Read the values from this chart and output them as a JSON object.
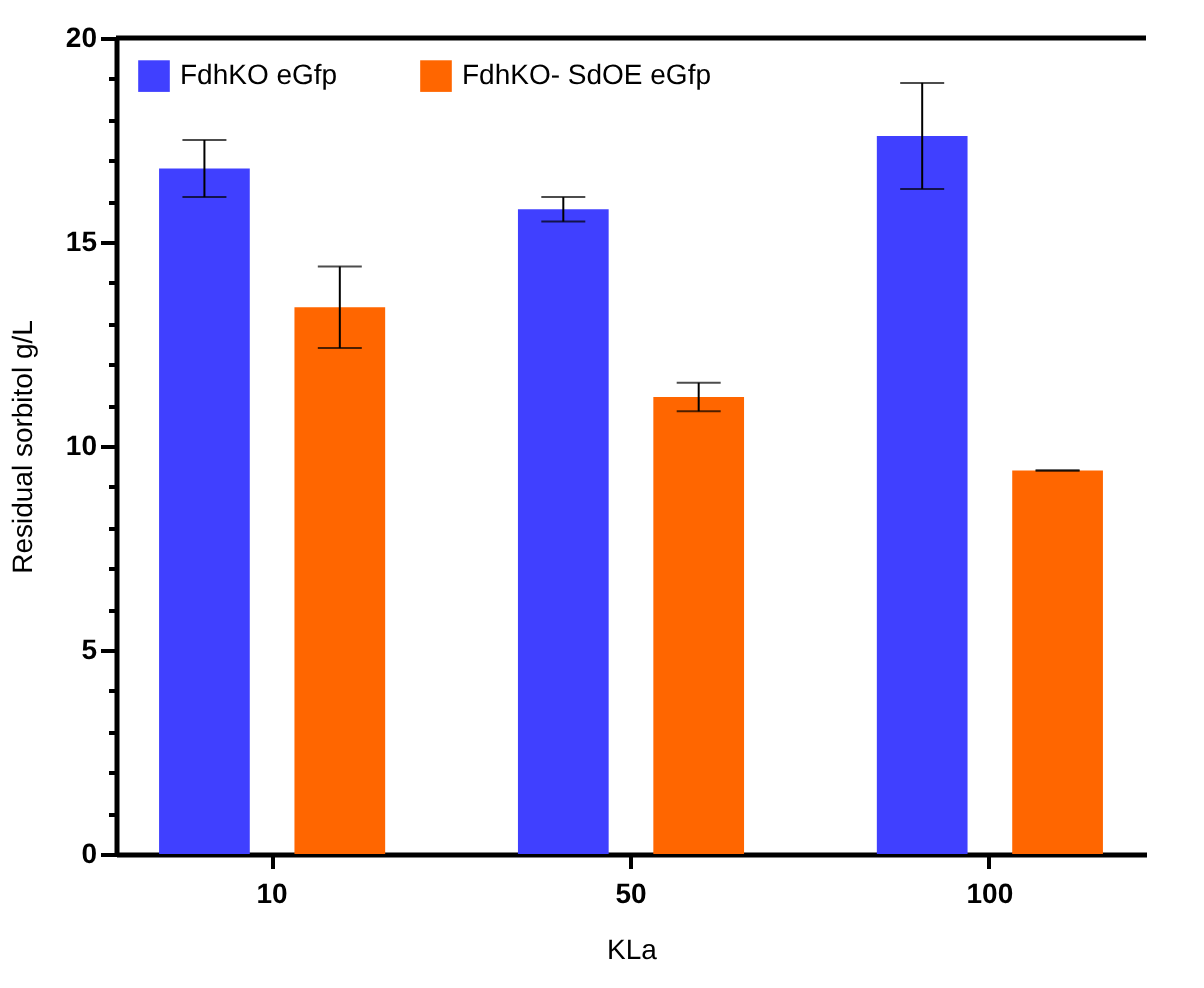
{
  "chart_data": {
    "type": "bar",
    "xlabel": "KLa",
    "ylabel": "Residual sorbitol g/L",
    "categories": [
      "10",
      "50",
      "100"
    ],
    "series": [
      {
        "name": "FdhKO eGfp",
        "color": "#4040ff",
        "values": [
          16.8,
          15.8,
          17.6
        ],
        "errors": [
          0.7,
          0.3,
          1.3
        ]
      },
      {
        "name": "FdhKO- SdOE eGfp",
        "color": "#ff6600",
        "values": [
          13.4,
          11.2,
          9.4
        ],
        "errors": [
          1.0,
          0.35,
          0
        ]
      }
    ],
    "ylim": [
      0,
      20
    ],
    "yticks": [
      0,
      {
        "value": 1,
        "label": null
      },
      {
        "value": 2,
        "label": null
      },
      {
        "value": 3,
        "label": null
      },
      {
        "value": 4,
        "label": null
      },
      5,
      {
        "value": 6,
        "label": null
      },
      {
        "value": 7,
        "label": null
      },
      {
        "value": 8,
        "label": null
      },
      {
        "value": 9,
        "label": null
      },
      10,
      {
        "value": 11,
        "label": null
      },
      {
        "value": 12,
        "label": null
      },
      {
        "value": 13,
        "label": null
      },
      {
        "value": 14,
        "label": null
      },
      15,
      {
        "value": 16,
        "label": null
      },
      {
        "value": 17,
        "label": null
      },
      {
        "value": 18,
        "label": null
      },
      {
        "value": 19,
        "label": null
      },
      20
    ],
    "grid": false,
    "legend": "top left"
  }
}
